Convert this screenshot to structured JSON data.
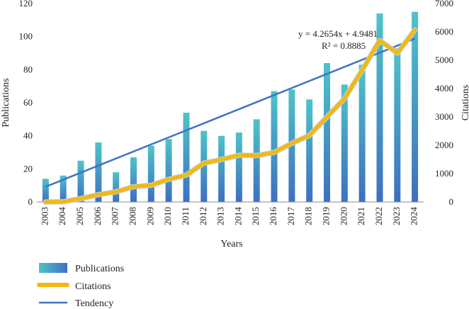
{
  "chart_data": {
    "type": "bar",
    "categories": [
      "2003",
      "2004",
      "2005",
      "2006",
      "2007",
      "2008",
      "2009",
      "2010",
      "2011",
      "2012",
      "2013",
      "2014",
      "2015",
      "2016",
      "2017",
      "2018",
      "2019",
      "2020",
      "2021",
      "2022",
      "2023",
      "2024"
    ],
    "series": [
      {
        "name": "Publications",
        "type": "bar",
        "axis": "left",
        "values": [
          14,
          16,
          25,
          36,
          18,
          27,
          34,
          38,
          54,
          43,
          40,
          42,
          50,
          67,
          68,
          62,
          84,
          71,
          83,
          114,
          93,
          115
        ]
      },
      {
        "name": "Citations",
        "type": "line",
        "axis": "right",
        "values": [
          0,
          10,
          120,
          260,
          360,
          540,
          590,
          800,
          950,
          1370,
          1500,
          1650,
          1640,
          1750,
          2070,
          2350,
          3000,
          3650,
          4650,
          5700,
          5250,
          6070
        ]
      },
      {
        "name": "Tendency",
        "type": "trendline",
        "axis": "left",
        "slope": 4.2654,
        "intercept": 4.9481,
        "r2": 0.8885
      }
    ],
    "xlabel": "Years",
    "ylabel": "Publications",
    "y2label": "Citations",
    "ylim": [
      0,
      120
    ],
    "y2lim": [
      0,
      7000
    ],
    "yticks": [
      0,
      20,
      40,
      60,
      80,
      100,
      120
    ],
    "y2ticks": [
      0,
      1000,
      2000,
      3000,
      4000,
      5000,
      6000,
      7000
    ],
    "equation": "y = 4.2654x + 4.9481",
    "r_squared": "R² = 0.8885",
    "legend": [
      "Publications",
      "Citations",
      "Tendency"
    ],
    "legend_position": "bottom-left",
    "colors": {
      "bar_top": "#4DC4C8",
      "bar_bottom": "#3E6FC0",
      "citations": "#F2B90C",
      "citations_outline": "#C9C9C9",
      "tendency": "#4472C4",
      "axis": "#8C8C8C"
    }
  }
}
